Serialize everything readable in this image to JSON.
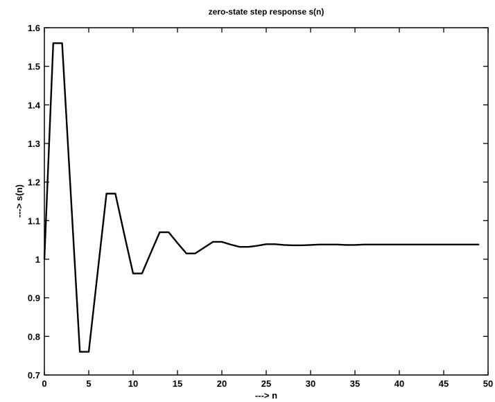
{
  "chart_data": {
    "type": "line",
    "title": "zero-state step response s(n)",
    "xlabel": "---> n",
    "ylabel": "---> s(n)",
    "xlim": [
      0,
      50
    ],
    "ylim": [
      0.7,
      1.6
    ],
    "grid": false,
    "x_ticks": [
      "0",
      "5",
      "10",
      "15",
      "20",
      "25",
      "30",
      "35",
      "40",
      "45",
      "50"
    ],
    "y_ticks": [
      "0.7",
      "0.8",
      "0.9",
      "1",
      "1.1",
      "1.2",
      "1.3",
      "1.4",
      "1.5",
      "1.6"
    ],
    "series": [
      {
        "x": [
          0,
          1,
          2,
          3,
          4,
          5,
          6,
          7,
          8,
          9,
          10,
          11,
          12,
          13,
          14,
          15,
          16,
          17,
          18,
          19,
          20,
          21,
          22,
          23,
          24,
          25,
          26,
          27,
          28,
          29,
          30,
          31,
          32,
          33,
          34,
          35,
          36,
          37,
          38,
          39,
          40,
          41,
          42,
          43,
          44,
          45,
          46,
          47,
          48,
          49
        ],
        "values": [
          1.0,
          1.56,
          1.56,
          1.16,
          0.76,
          0.76,
          0.965,
          1.17,
          1.17,
          1.065,
          0.963,
          0.963,
          1.017,
          1.07,
          1.07,
          1.042,
          1.015,
          1.015,
          1.03,
          1.045,
          1.045,
          1.038,
          1.032,
          1.032,
          1.035,
          1.039,
          1.039,
          1.037,
          1.036,
          1.036,
          1.037,
          1.038,
          1.038,
          1.038,
          1.037,
          1.037,
          1.038,
          1.038,
          1.038,
          1.038,
          1.038,
          1.038,
          1.038,
          1.038,
          1.038,
          1.038,
          1.038,
          1.038,
          1.038,
          1.038
        ]
      }
    ]
  }
}
